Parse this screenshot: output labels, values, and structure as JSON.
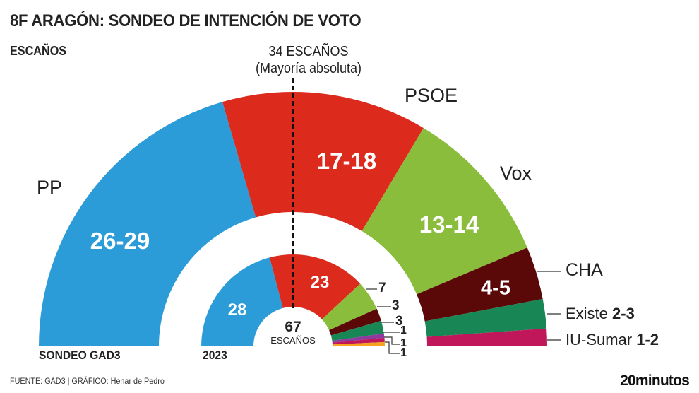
{
  "title": "8F ARAGÓN: SONDEO DE INTENCIÓN DE VOTO",
  "subtitle": "ESCAÑOS",
  "majority": {
    "line1": "34 ESCAÑOS",
    "line2": "(Mayoría absoluta)"
  },
  "center": {
    "number": "67",
    "label": "ESCAÑOS"
  },
  "bottom_labels": {
    "poll": "SONDEO GAD3",
    "previous": "2023"
  },
  "footer": {
    "source": "FUENTE: GAD3  |  GRÁFICO: Henar de Pedro",
    "logo": "20minutos"
  },
  "chart_data": [
    {
      "type": "pie",
      "subtype": "parliament-semicircle",
      "name": "SONDEO GAD3",
      "total_seats": 67,
      "majority": 34,
      "parties": [
        {
          "name": "PP",
          "seats": "26-29",
          "min": 26,
          "max": 29,
          "color": "#2b9cd8"
        },
        {
          "name": "PSOE",
          "seats": "17-18",
          "min": 17,
          "max": 18,
          "color": "#dc2a1d"
        },
        {
          "name": "Vox",
          "seats": "13-14",
          "min": 13,
          "max": 14,
          "color": "#8bbd3c"
        },
        {
          "name": "CHA",
          "seats": "4-5",
          "min": 4,
          "max": 5,
          "color": "#5a0808"
        },
        {
          "name": "Existe",
          "seats": "2-3",
          "min": 2,
          "max": 3,
          "color": "#198755"
        },
        {
          "name": "IU-Sumar",
          "seats": "1-2",
          "min": 1,
          "max": 2,
          "color": "#c0175a"
        }
      ]
    },
    {
      "type": "pie",
      "subtype": "parliament-semicircle",
      "name": "2023",
      "total_seats": 67,
      "parties": [
        {
          "seats": 28,
          "label": "28",
          "color": "#2b9cd8"
        },
        {
          "seats": 23,
          "label": "23",
          "color": "#dc2a1d"
        },
        {
          "seats": 7,
          "label": "7",
          "color": "#8bbd3c"
        },
        {
          "seats": 3,
          "label": "3",
          "color": "#5a0808"
        },
        {
          "seats": 3,
          "label": "3",
          "color": "#198755"
        },
        {
          "seats": 1,
          "label": "1",
          "color": "#8e3a9e"
        },
        {
          "seats": 1,
          "label": "1",
          "color": "#c0175a"
        },
        {
          "seats": 1,
          "label": "1",
          "color": "#f4a21f"
        }
      ]
    }
  ]
}
